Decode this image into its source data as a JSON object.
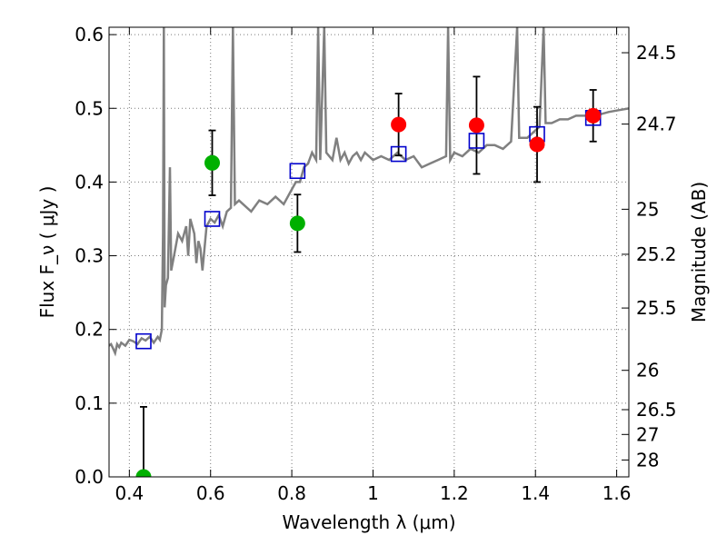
{
  "chart_data": {
    "type": "scatter",
    "xlabel": "Wavelength λ (μm)",
    "ylabel": "Flux F_ν ( μJy )",
    "y2label": "Magnitude (AB)",
    "xlim": [
      0.35,
      1.63
    ],
    "ylim": [
      0.0,
      0.61
    ],
    "grid": true,
    "x_ticks": [
      0.4,
      0.6,
      0.8,
      1.0,
      1.2,
      1.4,
      1.6
    ],
    "x_tick_labels": [
      "0.4",
      "0.6",
      "0.8",
      "1",
      "1.2",
      "1.4",
      "1.6"
    ],
    "y_ticks": [
      0.0,
      0.1,
      0.2,
      0.3,
      0.4,
      0.5,
      0.6
    ],
    "y_tick_labels": [
      "0.0",
      "0.1",
      "0.2",
      "0.3",
      "0.4",
      "0.5",
      "0.6"
    ],
    "y2_ticks": [
      24.5,
      24.7,
      25,
      25.2,
      25.5,
      26,
      26.5,
      27,
      28
    ],
    "y2_tick_labels": [
      "24.5",
      "24.7",
      "25",
      "25.2",
      "25.5",
      "26",
      "26.5",
      "27",
      "28"
    ],
    "colors": {
      "model": "#808080",
      "optical_obs": "#00b000",
      "nir_obs": "#ff0000",
      "model_band": "#0000cc",
      "errorbar": "#000000"
    },
    "series": [
      {
        "kind": "line",
        "points": [
          [
            0.35,
            0.178
          ],
          [
            0.355,
            0.18
          ],
          [
            0.36,
            0.174
          ],
          [
            0.365,
            0.168
          ],
          [
            0.37,
            0.18
          ],
          [
            0.375,
            0.176
          ],
          [
            0.38,
            0.182
          ],
          [
            0.39,
            0.178
          ],
          [
            0.4,
            0.186
          ],
          [
            0.41,
            0.184
          ],
          [
            0.42,
            0.18
          ],
          [
            0.43,
            0.188
          ],
          [
            0.44,
            0.185
          ],
          [
            0.45,
            0.19
          ],
          [
            0.46,
            0.182
          ],
          [
            0.47,
            0.19
          ],
          [
            0.475,
            0.186
          ],
          [
            0.48,
            0.2
          ],
          [
            0.483,
            0.33
          ],
          [
            0.485,
            0.61
          ],
          [
            0.487,
            0.23
          ],
          [
            0.49,
            0.26
          ],
          [
            0.495,
            0.27
          ],
          [
            0.5,
            0.42
          ],
          [
            0.503,
            0.28
          ],
          [
            0.51,
            0.3
          ],
          [
            0.52,
            0.33
          ],
          [
            0.53,
            0.32
          ],
          [
            0.54,
            0.34
          ],
          [
            0.545,
            0.3
          ],
          [
            0.55,
            0.35
          ],
          [
            0.56,
            0.33
          ],
          [
            0.565,
            0.29
          ],
          [
            0.57,
            0.32
          ],
          [
            0.575,
            0.31
          ],
          [
            0.58,
            0.28
          ],
          [
            0.59,
            0.34
          ],
          [
            0.6,
            0.35
          ],
          [
            0.61,
            0.345
          ],
          [
            0.62,
            0.355
          ],
          [
            0.63,
            0.34
          ],
          [
            0.64,
            0.36
          ],
          [
            0.65,
            0.365
          ],
          [
            0.655,
            0.61
          ],
          [
            0.66,
            0.37
          ],
          [
            0.67,
            0.375
          ],
          [
            0.68,
            0.37
          ],
          [
            0.7,
            0.36
          ],
          [
            0.72,
            0.375
          ],
          [
            0.74,
            0.37
          ],
          [
            0.76,
            0.38
          ],
          [
            0.78,
            0.37
          ],
          [
            0.8,
            0.39
          ],
          [
            0.81,
            0.4
          ],
          [
            0.82,
            0.4
          ],
          [
            0.83,
            0.42
          ],
          [
            0.84,
            0.425
          ],
          [
            0.85,
            0.44
          ],
          [
            0.86,
            0.43
          ],
          [
            0.865,
            0.61
          ],
          [
            0.87,
            0.43
          ],
          [
            0.88,
            0.61
          ],
          [
            0.885,
            0.44
          ],
          [
            0.9,
            0.43
          ],
          [
            0.91,
            0.46
          ],
          [
            0.92,
            0.43
          ],
          [
            0.93,
            0.44
          ],
          [
            0.94,
            0.425
          ],
          [
            0.95,
            0.435
          ],
          [
            0.96,
            0.44
          ],
          [
            0.97,
            0.43
          ],
          [
            0.98,
            0.44
          ],
          [
            1.0,
            0.43
          ],
          [
            1.02,
            0.435
          ],
          [
            1.04,
            0.43
          ],
          [
            1.06,
            0.44
          ],
          [
            1.08,
            0.43
          ],
          [
            1.1,
            0.435
          ],
          [
            1.12,
            0.42
          ],
          [
            1.14,
            0.425
          ],
          [
            1.16,
            0.43
          ],
          [
            1.18,
            0.435
          ],
          [
            1.185,
            0.61
          ],
          [
            1.19,
            0.43
          ],
          [
            1.2,
            0.44
          ],
          [
            1.22,
            0.435
          ],
          [
            1.24,
            0.445
          ],
          [
            1.26,
            0.44
          ],
          [
            1.28,
            0.45
          ],
          [
            1.3,
            0.45
          ],
          [
            1.32,
            0.445
          ],
          [
            1.34,
            0.455
          ],
          [
            1.355,
            0.61
          ],
          [
            1.36,
            0.46
          ],
          [
            1.38,
            0.46
          ],
          [
            1.4,
            0.47
          ],
          [
            1.41,
            0.475
          ],
          [
            1.42,
            0.61
          ],
          [
            1.425,
            0.48
          ],
          [
            1.44,
            0.48
          ],
          [
            1.46,
            0.485
          ],
          [
            1.48,
            0.485
          ],
          [
            1.5,
            0.49
          ],
          [
            1.52,
            0.49
          ],
          [
            1.54,
            0.49
          ],
          [
            1.56,
            0.492
          ],
          [
            1.58,
            0.495
          ],
          [
            1.6,
            0.497
          ],
          [
            1.63,
            0.5
          ]
        ]
      },
      {
        "kind": "points",
        "marker": "square",
        "points": [
          [
            0.435,
            0.184
          ],
          [
            0.604,
            0.35
          ],
          [
            0.814,
            0.415
          ],
          [
            1.063,
            0.438
          ],
          [
            1.255,
            0.456
          ],
          [
            1.404,
            0.465
          ],
          [
            1.542,
            0.487
          ]
        ]
      },
      {
        "kind": "points",
        "marker": "circle",
        "points": [
          [
            0.435,
            0.0,
            0.095
          ],
          [
            0.604,
            0.426,
            0.044
          ],
          [
            0.814,
            0.344,
            0.039
          ]
        ]
      },
      {
        "kind": "points",
        "marker": "circle",
        "points": [
          [
            1.063,
            0.478,
            0.042
          ],
          [
            1.255,
            0.477,
            0.066
          ],
          [
            1.404,
            0.451,
            0.051
          ],
          [
            1.542,
            0.49,
            0.035
          ]
        ]
      }
    ]
  }
}
